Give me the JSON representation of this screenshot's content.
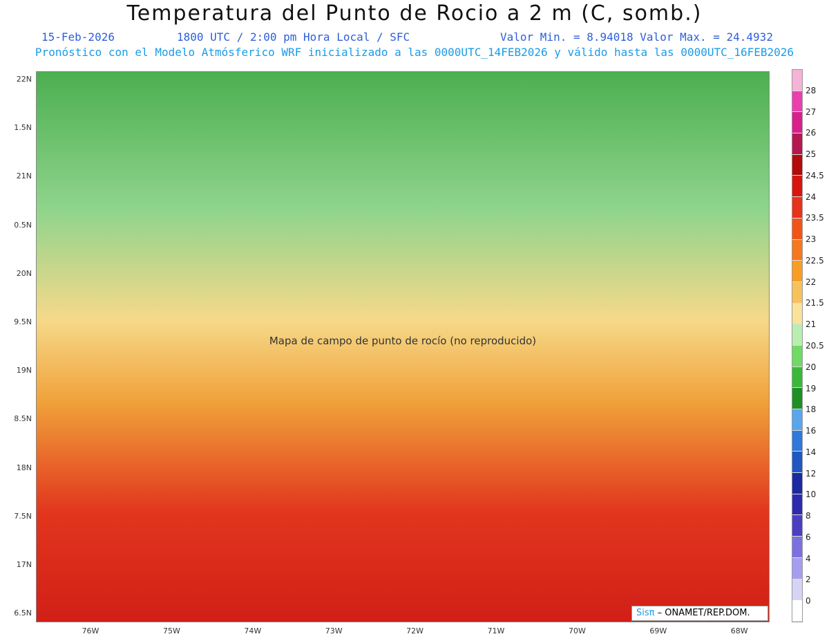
{
  "title": "Temperatura del Punto de Rocio a 2 m (C, somb.)",
  "date": "15-Feb-2026",
  "time_line": "1800 UTC / 2:00 pm Hora Local / SFC",
  "min_max": "Valor Min. = 8.94018  Valor Max. = 24.4932",
  "model_line": "Pronóstico con el Modelo Atmósferico WRF inicializado a las 0000UTC_14FEB2026 y válido hasta las  0000UTC_16FEB2026",
  "lat_labels": [
    "22N",
    "1.5N",
    "21N",
    "0.5N",
    "20N",
    "9.5N",
    "19N",
    "8.5N",
    "18N",
    "7.5N",
    "17N",
    "6.5N"
  ],
  "lon_labels": [
    "76W",
    "75W",
    "74W",
    "73W",
    "72W",
    "71W",
    "70W",
    "69W",
    "68W"
  ],
  "scale_labels": [
    "28",
    "27",
    "26",
    "25",
    "24.5",
    "24",
    "23.5",
    "23",
    "22.5",
    "22",
    "21.5",
    "21",
    "20.5",
    "20",
    "19",
    "18",
    "16",
    "14",
    "12",
    "10",
    "8",
    "6",
    "4",
    "2",
    "0"
  ],
  "scale_colors": [
    "#f5b3d6",
    "#ec3fae",
    "#d91f8e",
    "#b5174f",
    "#b30a0a",
    "#d8140f",
    "#e8321b",
    "#f25418",
    "#f7771f",
    "#f99d23",
    "#f8c25a",
    "#fae29a",
    "#b9eeb0",
    "#6fdb62",
    "#3bb83a",
    "#1d8f24",
    "#5aa6ec",
    "#2f78dc",
    "#1f57c4",
    "#1a2aa0",
    "#2e2ab0",
    "#4a3fc3",
    "#7c6fe0",
    "#a59ef0",
    "#d5d4f6",
    "#ffffff"
  ],
  "watermark": {
    "logo": "Sisπ",
    "text": "– ONAMET/REP.DOM."
  },
  "map_note": "Mapa de campo de punto de rocío (no reproducido)"
}
